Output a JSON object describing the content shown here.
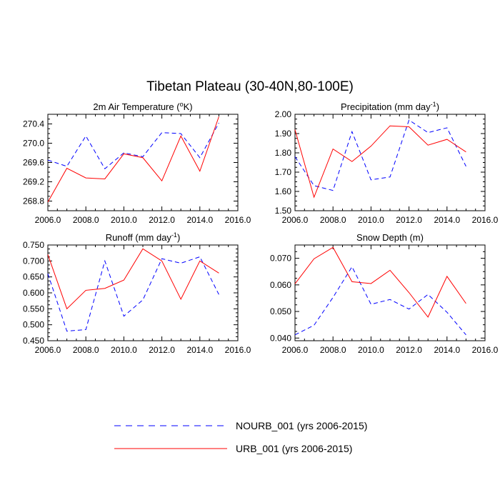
{
  "figure": {
    "title": "Tibetan Plateau (30-40N,80-100E)"
  },
  "legend": [
    {
      "name": "NOURB_001 (yrs 2006-2015)",
      "color": "#0000ff",
      "style": "dashed"
    },
    {
      "name": "URB_001 (yrs 2006-2015)",
      "color": "#ff0000",
      "style": "solid"
    }
  ],
  "chart_data": [
    {
      "type": "line",
      "title": "2m Air Temperature (°K)",
      "title_parts": [
        "2m Air Temperature (",
        "o",
        "K)"
      ],
      "x": [
        2006,
        2007,
        2008,
        2009,
        2010,
        2011,
        2012,
        2013,
        2014,
        2015
      ],
      "xlim": [
        2006,
        2016
      ],
      "xticks": [
        "2006.0",
        "2008.0",
        "2010.0",
        "2012.0",
        "2014.0",
        "2016.0"
      ],
      "ylim": [
        268.6,
        270.6
      ],
      "yticks": [
        "268.8",
        "269.2",
        "269.6",
        "270.0",
        "270.4"
      ],
      "series": [
        {
          "name": "NOURB_001 (yrs 2006-2015)",
          "values": [
            269.65,
            269.52,
            270.15,
            269.47,
            269.8,
            269.72,
            270.22,
            270.2,
            269.7,
            270.42
          ]
        },
        {
          "name": "URB_001 (yrs 2006-2015)",
          "values": [
            268.78,
            269.48,
            269.28,
            269.26,
            269.78,
            269.7,
            269.22,
            270.15,
            269.42,
            270.55
          ]
        }
      ]
    },
    {
      "type": "line",
      "title": "Precipitation (mm day-1)",
      "title_parts": [
        "Precipitation (mm day",
        "-1",
        ")"
      ],
      "x": [
        2006,
        2007,
        2008,
        2009,
        2010,
        2011,
        2012,
        2013,
        2014,
        2015
      ],
      "xlim": [
        2006,
        2016
      ],
      "xticks": [
        "2006.0",
        "2008.0",
        "2010.0",
        "2012.0",
        "2014.0",
        "2016.0"
      ],
      "ylim": [
        1.5,
        2.0
      ],
      "yticks": [
        "1.50",
        "1.60",
        "1.70",
        "1.80",
        "1.90",
        "2.00"
      ],
      "series": [
        {
          "name": "NOURB_001 (yrs 2006-2015)",
          "values": [
            1.78,
            1.63,
            1.605,
            1.91,
            1.66,
            1.675,
            1.97,
            1.905,
            1.93,
            1.73
          ]
        },
        {
          "name": "URB_001 (yrs 2006-2015)",
          "values": [
            1.92,
            1.57,
            1.82,
            1.755,
            1.835,
            1.94,
            1.935,
            1.84,
            1.87,
            1.805
          ]
        }
      ]
    },
    {
      "type": "line",
      "title": "Runoff (mm day-1)",
      "title_parts": [
        "Runoff (mm day",
        "-1",
        ")"
      ],
      "x": [
        2006,
        2007,
        2008,
        2009,
        2010,
        2011,
        2012,
        2013,
        2014,
        2015
      ],
      "xlim": [
        2006,
        2016
      ],
      "xticks": [
        "2006.0",
        "2008.0",
        "2010.0",
        "2012.0",
        "2014.0",
        "2016.0"
      ],
      "ylim": [
        0.45,
        0.75
      ],
      "yticks": [
        "0.450",
        "0.500",
        "0.550",
        "0.600",
        "0.650",
        "0.700",
        "0.750"
      ],
      "series": [
        {
          "name": "NOURB_001 (yrs 2006-2015)",
          "values": [
            0.66,
            0.48,
            0.485,
            0.7,
            0.527,
            0.578,
            0.707,
            0.693,
            0.713,
            0.595
          ]
        },
        {
          "name": "URB_001 (yrs 2006-2015)",
          "values": [
            0.72,
            0.55,
            0.608,
            0.614,
            0.64,
            0.738,
            0.7,
            0.58,
            0.7,
            0.662
          ]
        }
      ]
    },
    {
      "type": "line",
      "title": "Snow Depth (m)",
      "title_parts": [
        "Snow Depth (m)",
        "",
        ""
      ],
      "x": [
        2006,
        2007,
        2008,
        2009,
        2010,
        2011,
        2012,
        2013,
        2014,
        2015
      ],
      "xlim": [
        2006,
        2016
      ],
      "xticks": [
        "2006.0",
        "2008.0",
        "2010.0",
        "2012.0",
        "2014.0",
        "2016.0"
      ],
      "ylim": [
        0.039,
        0.075
      ],
      "yticks": [
        "0.040",
        "0.050",
        "0.060",
        "0.070"
      ],
      "series": [
        {
          "name": "NOURB_001 (yrs 2006-2015)",
          "values": [
            0.0412,
            0.0448,
            0.0553,
            0.0668,
            0.0527,
            0.0545,
            0.0509,
            0.0564,
            0.0497,
            0.0412
          ]
        },
        {
          "name": "URB_001 (yrs 2006-2015)",
          "values": [
            0.0604,
            0.0698,
            0.0741,
            0.0612,
            0.0605,
            0.0655,
            0.0571,
            0.0479,
            0.0632,
            0.053
          ]
        }
      ]
    }
  ]
}
